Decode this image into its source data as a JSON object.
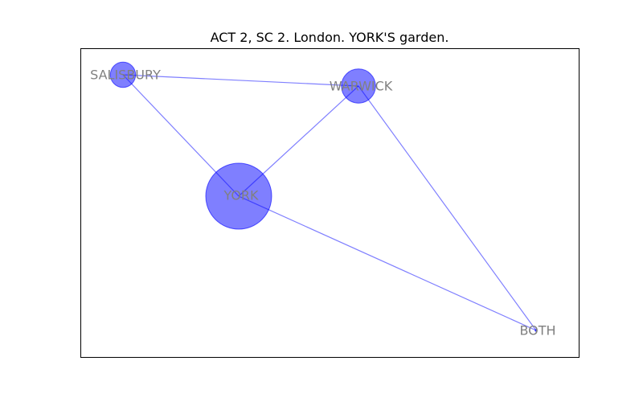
{
  "figure": {
    "title": "ACT 2, SC 2. London. YORK'S garden."
  },
  "graph": {
    "node_color": "#0000ff",
    "edge_color": "#0000ff",
    "label_color": "#808080",
    "nodes": [
      {
        "id": "YORK",
        "label": "YORK",
        "weight": 41
      },
      {
        "id": "SALISBURY",
        "label": "SALISBURY",
        "weight": 6
      },
      {
        "id": "WARWICK",
        "label": "WARWICK",
        "weight": 11
      },
      {
        "id": "BOTH",
        "label": "BOTH",
        "weight": 0
      }
    ],
    "edges": [
      {
        "source": "SALISBURY",
        "target": "WARWICK"
      },
      {
        "source": "SALISBURY",
        "target": "YORK"
      },
      {
        "source": "WARWICK",
        "target": "YORK"
      },
      {
        "source": "WARWICK",
        "target": "BOTH"
      },
      {
        "source": "YORK",
        "target": "BOTH"
      }
    ]
  }
}
